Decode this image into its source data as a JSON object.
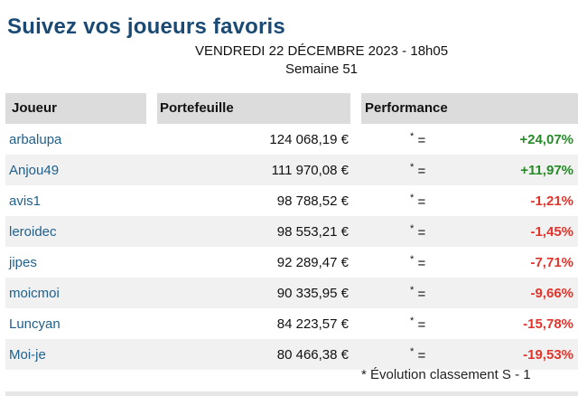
{
  "page": {
    "title": "Suivez vos joueurs favoris",
    "date_line": "VENDREDI 22 DÉCEMBRE 2023 - 18h05",
    "week_line": "Semaine 51",
    "footnote": "* Évolution classement S - 1"
  },
  "table": {
    "columns": [
      "Joueur",
      "Portefeuille",
      "Performance"
    ],
    "evolution_symbol": {
      "star": "*",
      "equals": "="
    },
    "rows": [
      {
        "player": "arbalupa",
        "portfolio": "124 068,19 €",
        "perf": "+24,07%",
        "direction": "up"
      },
      {
        "player": "Anjou49",
        "portfolio": "111 970,08 €",
        "perf": "+11,97%",
        "direction": "up"
      },
      {
        "player": "avis1",
        "portfolio": "98 788,52 €",
        "perf": "-1,21%",
        "direction": "down"
      },
      {
        "player": "leroidec",
        "portfolio": "98 553,21 €",
        "perf": "-1,45%",
        "direction": "down"
      },
      {
        "player": "jipes",
        "portfolio": "92 289,47 €",
        "perf": "-7,71%",
        "direction": "down"
      },
      {
        "player": "moicmoi",
        "portfolio": "90 335,95 €",
        "perf": "-9,66%",
        "direction": "down"
      },
      {
        "player": "Luncyan",
        "portfolio": "84 223,57 €",
        "perf": "-15,78%",
        "direction": "down"
      },
      {
        "player": "Moi-je",
        "portfolio": "80 466,38 €",
        "perf": "-19,53%",
        "direction": "down"
      }
    ]
  },
  "colors": {
    "title": "#1a4a73",
    "player_link": "#20618d",
    "positive": "#278a28",
    "negative": "#e0342c",
    "header_bg": "#dcdcdc",
    "row_alt_bg": "#f1f1f1"
  }
}
